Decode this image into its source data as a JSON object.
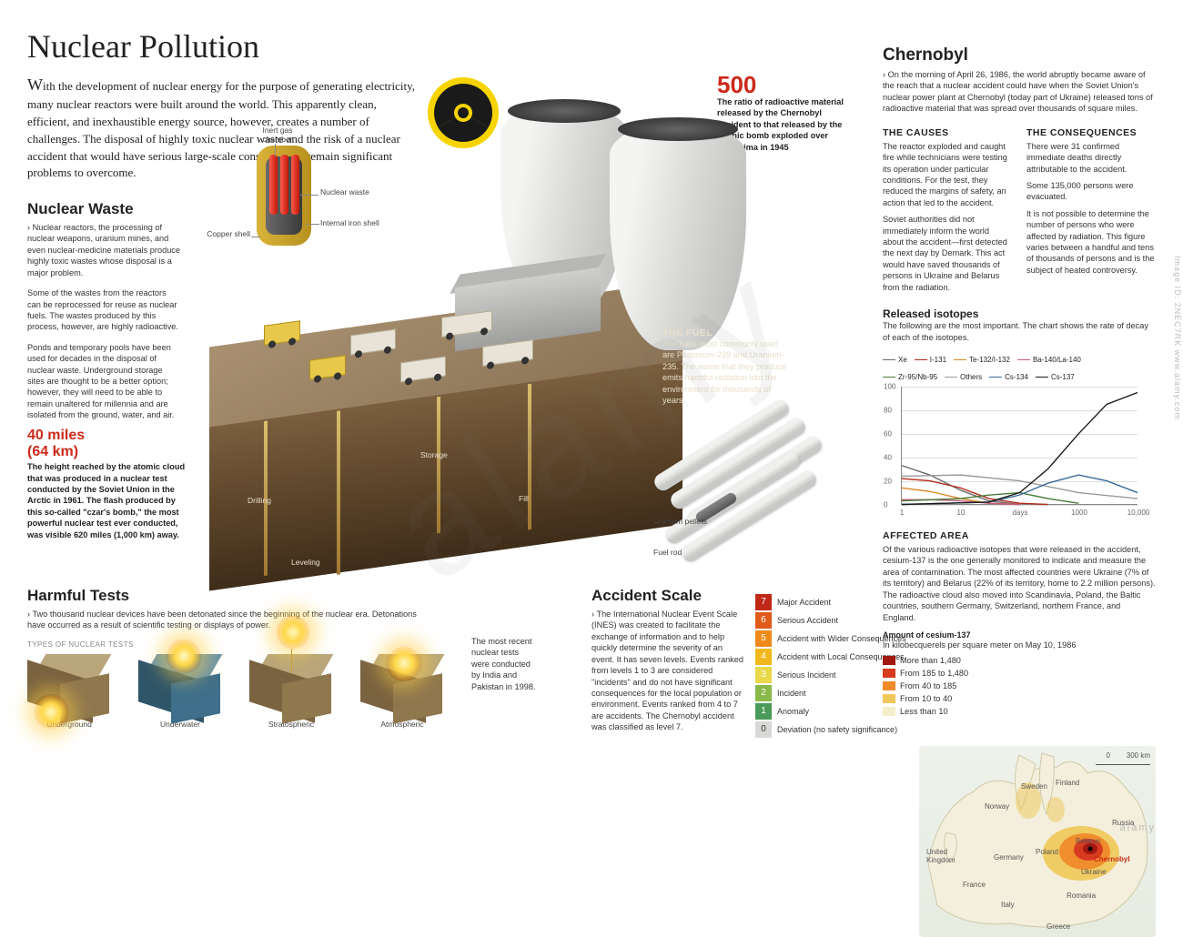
{
  "colors": {
    "accent_red": "#cc2a1a",
    "radiation_yellow": "#f7d400",
    "soil_top": "#8a7355",
    "soil_deep": "#5a4228",
    "tower_light": "#f4f4f2",
    "tower_shade": "#b9b9b7",
    "water": "#3f6f8a",
    "ground_tan": "#b9a67a",
    "sky_pale": "#e8eef0",
    "watermark_grey": "rgba(120,120,120,.08)"
  },
  "title": "Nuclear Pollution",
  "intro_firstcap": "W",
  "intro": "ith the development of nuclear energy for the purpose of generating electricity, many nuclear reactors were built around the world. This apparently clean, efficient, and inexhaustible energy source, however, creates a number of challenges. The disposal of highly toxic nuclear waste and the risk of a nuclear accident that would have serious large-scale consequences remain significant problems to overcome.",
  "nuclear_waste": {
    "heading": "Nuclear Waste",
    "p1": "Nuclear reactors, the processing of nuclear weapons, uranium mines, and even nuclear-medicine materials produce highly toxic wastes whose disposal is a major problem.",
    "p2": "Some of the wastes from the reactors can be reprocessed for reuse as nuclear fuels. The wastes produced by this process, however, are highly radioactive.",
    "p3": "Ponds and temporary pools have been used for decades in the disposal of nuclear waste. Underground storage sites are thought to be a better option; however, they will need to be able to remain unaltered for millennia and are isolated from the ground, water, and air."
  },
  "capsule_labels": {
    "inert_gas": "Inert gas chamber",
    "nuclear_waste": "Nuclear waste",
    "copper_shell": "Copper shell",
    "iron_shell": "Internal iron shell"
  },
  "underground_labels": {
    "drilling": "Drilling",
    "leveling": "Leveling",
    "storage": "Storage",
    "fill": "Fill"
  },
  "stat_40miles": {
    "line1": "40 miles",
    "line2": "(64 km)",
    "text": "The height reached by the atomic cloud that was produced in a nuclear test conducted by the Soviet Union in the Arctic in 1961. The flash produced by this so-called \"czar's bomb,\" the most powerful nuclear test ever conducted, was visible 620 miles (1,000 km) away."
  },
  "stat_500": {
    "number": "500",
    "text": "The ratio of radioactive material released by the Chernobyl accident to that released by the atomic bomb exploded over Hiroshima in 1945"
  },
  "fuel": {
    "heading": "THE FUEL",
    "text": "The fuels most commonly used are Plutonium-239 and Uranium-235. The waste that they produce emits harmful radiation into the environment for thousands of years.",
    "pellets": "Uranium pellets",
    "rod": "Fuel rod"
  },
  "harmful_tests": {
    "heading": "Harmful Tests",
    "intro": "Two thousand nuclear devices have been detonated since the beginning of the nuclear era. Detonations have occurred as a result of scientific testing or displays of power.",
    "types_label": "TYPES OF NUCLEAR TESTS",
    "note": "The most recent nuclear tests were conducted by India and Pakistan in 1998.",
    "types": [
      "Underground",
      "Underwater",
      "Stratospheric",
      "Atmospheric"
    ]
  },
  "accident_scale": {
    "heading": "Accident Scale",
    "text": "The International Nuclear Event Scale (INES) was created to facilitate the exchange of information and to help quickly determine the severity of an event. It has seven levels. Events ranked from levels 1 to 3 are considered \"incidents\" and do not have significant consequences for the local population or environment. Events ranked from 4 to 7 are accidents. The Chernobyl accident was classified as level 7.",
    "levels": [
      {
        "n": "7",
        "label": "Major Accident",
        "color": "#c02818"
      },
      {
        "n": "6",
        "label": "Serious Accident",
        "color": "#e05a1a"
      },
      {
        "n": "5",
        "label": "Accident with Wider Consequences",
        "color": "#ef8a1a"
      },
      {
        "n": "4",
        "label": "Accident with Local Consequences",
        "color": "#f0b81a"
      },
      {
        "n": "3",
        "label": "Serious Incident",
        "color": "#e8d84a"
      },
      {
        "n": "2",
        "label": "Incident",
        "color": "#8ab84a"
      },
      {
        "n": "1",
        "label": "Anomaly",
        "color": "#4a9a5a"
      },
      {
        "n": "0",
        "label": "Deviation (no safety significance)",
        "color": "#d8d8d6"
      }
    ]
  },
  "chernobyl": {
    "heading": "Chernobyl",
    "intro": "On the morning of April 26, 1986, the world abruptly became aware of the reach that a nuclear accident could have when the Soviet Union's nuclear power plant at Chernobyl (today part of Ukraine) released tons of radioactive material that was spread over thousands of square miles.",
    "causes_h": "THE CAUSES",
    "causes_p1": "The reactor exploded and caught fire while technicians were testing its operation under particular conditions. For the test, they reduced the margins of safety, an action that led to the accident.",
    "causes_p2": "Soviet authorities did not immediately inform the world about the accident—first detected the next day by Demark. This act would have saved thousands of persons in Ukraine and Belarus from the radiation.",
    "conseq_h": "THE CONSEQUENCES",
    "conseq_p1": "There were 31 confirmed immediate deaths directly attributable to the accident.",
    "conseq_p2": "Some 135,000 persons were evacuated.",
    "conseq_p3": "It is not possible to determine the number of persons who were affected by radiation. This figure varies between a handful and tens of thousands of persons and is the subject of heated controversy."
  },
  "isotopes": {
    "heading": "Released isotopes",
    "sub": "The following are the most important. The chart shows the rate of decay of each of the isotopes.",
    "y_ticks": [
      0,
      20,
      40,
      60,
      80,
      100
    ],
    "x_ticks": [
      {
        "v": 1,
        "l": "1"
      },
      {
        "v": 10,
        "l": "10"
      },
      {
        "v": 100,
        "l": "days"
      },
      {
        "v": 1000,
        "l": "1000"
      },
      {
        "v": 10000,
        "l": "10,000"
      }
    ],
    "x_scale": "log",
    "xlim": [
      1,
      10000
    ],
    "ylim": [
      0,
      100
    ],
    "series": [
      {
        "name": "Xe",
        "color": "#6a6a6a",
        "points": [
          [
            1,
            33
          ],
          [
            3,
            25
          ],
          [
            10,
            12
          ],
          [
            30,
            3
          ],
          [
            100,
            0
          ]
        ]
      },
      {
        "name": "I-131",
        "color": "#b02818",
        "points": [
          [
            1,
            22
          ],
          [
            3,
            20
          ],
          [
            10,
            14
          ],
          [
            30,
            5
          ],
          [
            100,
            1
          ],
          [
            300,
            0
          ]
        ]
      },
      {
        "name": "Te-132/I-132",
        "color": "#d88a2a",
        "points": [
          [
            1,
            14
          ],
          [
            3,
            11
          ],
          [
            10,
            5
          ],
          [
            30,
            1
          ],
          [
            100,
            0
          ]
        ]
      },
      {
        "name": "Ba-140/La-140",
        "color": "#c85a78",
        "points": [
          [
            1,
            4
          ],
          [
            3,
            4
          ],
          [
            10,
            3
          ],
          [
            30,
            1
          ],
          [
            100,
            0
          ]
        ]
      },
      {
        "name": "Zr-95/Nb-95",
        "color": "#4a7a3a",
        "points": [
          [
            1,
            3
          ],
          [
            10,
            5
          ],
          [
            30,
            8
          ],
          [
            100,
            10
          ],
          [
            300,
            5
          ],
          [
            1000,
            1
          ]
        ]
      },
      {
        "name": "Others",
        "color": "#9a9a9a",
        "points": [
          [
            1,
            24
          ],
          [
            10,
            25
          ],
          [
            100,
            20
          ],
          [
            1000,
            10
          ],
          [
            10000,
            5
          ]
        ]
      },
      {
        "name": "Cs-134",
        "color": "#3a6a9a",
        "points": [
          [
            1,
            0
          ],
          [
            30,
            2
          ],
          [
            100,
            8
          ],
          [
            300,
            18
          ],
          [
            1000,
            25
          ],
          [
            3000,
            20
          ],
          [
            10000,
            10
          ]
        ]
      },
      {
        "name": "Cs-137",
        "color": "#1a1a1a",
        "points": [
          [
            1,
            0
          ],
          [
            30,
            2
          ],
          [
            100,
            10
          ],
          [
            300,
            30
          ],
          [
            1000,
            60
          ],
          [
            3000,
            85
          ],
          [
            10000,
            95
          ]
        ]
      }
    ]
  },
  "affected_area": {
    "heading": "AFFECTED AREA",
    "text": "Of the various radioactive isotopes that were released in the accident, cesium-137 is the one generally monitored to indicate and measure the area of contamination. The most affected countries were Ukraine (7% of its territory) and Belarus (22% of its territory, home to 2.2 million persons). The radioactive cloud also moved into Scandinavia, Poland, the Baltic countries, southern Germany, Switzerland, northern France, and England.",
    "legend_title": "Amount of cesium-137",
    "legend_sub": "In kilobecquerels per square meter on May 10, 1986",
    "levels": [
      {
        "label": "More than 1,480",
        "color": "#a01810"
      },
      {
        "label": "From 185 to 1,480",
        "color": "#d83a20"
      },
      {
        "label": "From 40 to 185",
        "color": "#ef8a2a"
      },
      {
        "label": "From 10 to 40",
        "color": "#f0c858"
      },
      {
        "label": "Less than 10",
        "color": "#f5eecb"
      }
    ],
    "scalebar": "0        300 km",
    "countries": [
      "Norway",
      "Sweden",
      "Finland",
      "Russia",
      "United Kingdom",
      "Germany",
      "Poland",
      "Belarus",
      "Ukraine",
      "France",
      "Italy",
      "Romania",
      "Greece"
    ],
    "chernobyl_label": "Chernobyl"
  },
  "watermark": {
    "big": "alamy",
    "corner": "alamy",
    "code": "Image ID: 2NEC7RK  www.alamy.com"
  }
}
